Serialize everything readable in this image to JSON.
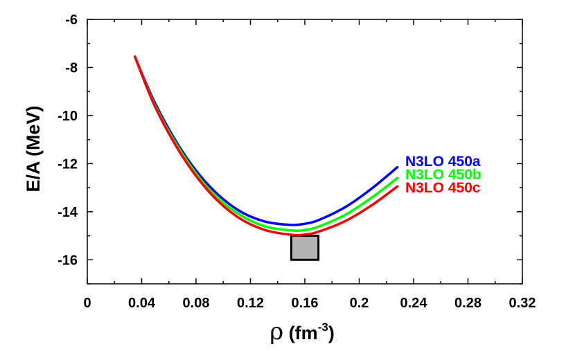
{
  "chart_data": {
    "type": "line",
    "title": "",
    "xlabel": {
      "symbol": "ρ",
      "unit_open": " (fm",
      "exponent": "-3",
      "unit_close": ")"
    },
    "ylabel": "E/A (MeV)",
    "xlim": [
      0,
      0.32
    ],
    "ylim": [
      -17,
      -6
    ],
    "x_ticks": [
      0,
      0.04,
      0.08,
      0.12,
      0.16,
      0.2,
      0.24,
      0.28,
      0.32
    ],
    "x_tick_labels": [
      "0",
      "0.04",
      "0.08",
      "0.12",
      "0.16",
      "0.2",
      "0.24",
      "0.28",
      "0.32"
    ],
    "y_ticks": [
      -16,
      -14,
      -12,
      -10,
      -8,
      -6
    ],
    "y_tick_labels": [
      "-16",
      "-14",
      "-12",
      "-10",
      "-8",
      "-6"
    ],
    "grid": false,
    "legend_placement": "right, inline at curve ends",
    "series": [
      {
        "name": "N3LO 450a",
        "color": "#0000ff",
        "x": [
          0.035,
          0.05,
          0.07,
          0.09,
          0.11,
          0.13,
          0.15,
          0.16,
          0.17,
          0.19,
          0.21,
          0.228
        ],
        "y": [
          -7.55,
          -9.5,
          -11.5,
          -12.95,
          -13.9,
          -14.4,
          -14.55,
          -14.5,
          -14.35,
          -13.8,
          -13.0,
          -12.15
        ]
      },
      {
        "name": "N3LO 450b",
        "color": "#00ff00",
        "x": [
          0.035,
          0.05,
          0.07,
          0.09,
          0.11,
          0.13,
          0.15,
          0.16,
          0.17,
          0.19,
          0.21,
          0.228
        ],
        "y": [
          -7.55,
          -9.6,
          -11.6,
          -13.1,
          -14.05,
          -14.6,
          -14.78,
          -14.76,
          -14.62,
          -14.12,
          -13.38,
          -12.6
        ]
      },
      {
        "name": "N3LO 450c",
        "color": "#ff0000",
        "x": [
          0.035,
          0.05,
          0.07,
          0.09,
          0.11,
          0.13,
          0.15,
          0.16,
          0.17,
          0.19,
          0.21,
          0.228
        ],
        "y": [
          -7.55,
          -9.65,
          -11.7,
          -13.2,
          -14.2,
          -14.75,
          -14.96,
          -14.95,
          -14.83,
          -14.38,
          -13.7,
          -12.95
        ]
      }
    ],
    "box": {
      "x0": 0.15,
      "x1": 0.17,
      "y0": -16.0,
      "y1": -15.0,
      "fill": "#b3b3b3"
    }
  }
}
